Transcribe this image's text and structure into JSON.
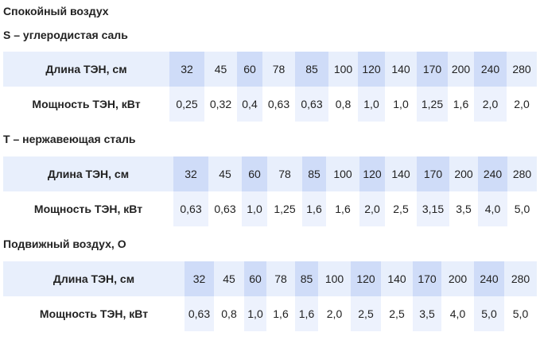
{
  "title": "Спокойный воздух",
  "sections": [
    {
      "heading": "S – углеродистая саль",
      "length_label": "Длина ТЭН, см",
      "power_label": "Мощность ТЭН, кВт",
      "lengths": [
        "32",
        "45",
        "60",
        "78",
        "85",
        "100",
        "120",
        "140",
        "170",
        "200",
        "240",
        "280"
      ],
      "powers": [
        "0,25",
        "0,32",
        "0,4",
        "0,63",
        "0,63",
        "0,8",
        "1,0",
        "1,0",
        "1,25",
        "1,6",
        "2,0",
        "2,0"
      ]
    },
    {
      "heading": "Т – нержавеющая сталь",
      "length_label": "Длина ТЭН, см",
      "power_label": "Мощность ТЭН, кВт",
      "lengths": [
        "32",
        "45",
        "60",
        "78",
        "85",
        "100",
        "120",
        "140",
        "170",
        "200",
        "240",
        "280"
      ],
      "powers": [
        "0,63",
        "0,63",
        "1,0",
        "1,25",
        "1,6",
        "1,6",
        "2,0",
        "2,5",
        "3,15",
        "3,5",
        "4,0",
        "5,0"
      ]
    },
    {
      "heading": "Подвижный воздух, О",
      "length_label": "Длина ТЭН, см",
      "power_label": "Мощность ТЭН, кВт",
      "lengths": [
        "32",
        "45",
        "60",
        "78",
        "85",
        "100",
        "120",
        "140",
        "170",
        "200",
        "240",
        "280"
      ],
      "powers": [
        "0,63",
        "0,8",
        "1,0",
        "1,6",
        "1,6",
        "2,0",
        "2,5",
        "2,5",
        "3,5",
        "4,0",
        "5,0",
        "5,0"
      ]
    }
  ]
}
